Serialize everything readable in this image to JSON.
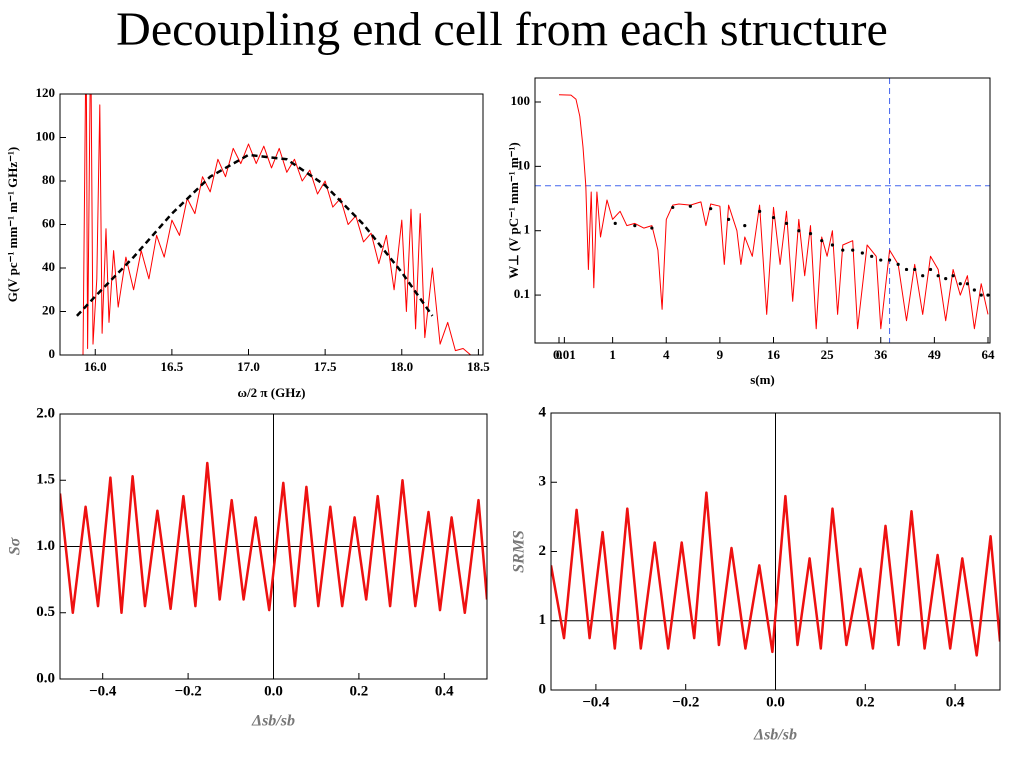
{
  "title": "Decoupling end cell from each structure",
  "chart_data": [
    {
      "type": "line",
      "xlabel": "ω/2 π (GHz)",
      "ylabel": "G(V pc⁻¹ mm⁻¹ m⁻¹ GHz⁻¹)",
      "xlim": [
        15.77,
        18.53
      ],
      "ylim": [
        0,
        120
      ],
      "xticks": [
        {
          "value": 16,
          "label": "16.0"
        },
        16.5,
        {
          "value": 17,
          "label": "17.0"
        },
        17.5,
        {
          "value": 18,
          "label": "18.0"
        },
        18.5
      ],
      "yticks": [
        0,
        20,
        40,
        60,
        80,
        100,
        120
      ],
      "series": [
        {
          "color": "#ff0000",
          "line_style": "solid",
          "x": [
            15.85,
            15.92,
            15.94,
            15.95,
            15.97,
            15.985,
            16.01,
            16.03,
            16.045,
            16.07,
            16.09,
            16.12,
            16.15,
            16.2,
            16.25,
            16.3,
            16.35,
            16.4,
            16.45,
            16.5,
            16.55,
            16.6,
            16.65,
            16.7,
            16.75,
            16.8,
            16.85,
            16.9,
            16.95,
            17.0,
            17.05,
            17.1,
            17.15,
            17.2,
            17.25,
            17.3,
            17.35,
            17.4,
            17.45,
            17.5,
            17.55,
            17.6,
            17.65,
            17.7,
            17.75,
            17.8,
            17.85,
            17.9,
            17.95,
            18.0,
            18.03,
            18.06,
            18.09,
            18.12,
            18.15,
            18.2,
            18.25,
            18.3,
            18.35,
            18.4,
            18.45,
            18.5
          ],
          "values": [
            0,
            0,
            150,
            3,
            150,
            5,
            35,
            115,
            10,
            58,
            15,
            48,
            22,
            45,
            30,
            48,
            35,
            55,
            45,
            62,
            55,
            72,
            65,
            82,
            75,
            90,
            82,
            95,
            88,
            97,
            88,
            96,
            86,
            95,
            84,
            90,
            80,
            85,
            74,
            80,
            68,
            72,
            60,
            64,
            52,
            56,
            42,
            55,
            30,
            62,
            20,
            67,
            12,
            65,
            8,
            40,
            5,
            15,
            2,
            3,
            0,
            0
          ]
        },
        {
          "color": "#000000",
          "line_style": "dashed",
          "x": [
            15.88,
            16.0,
            16.25,
            16.5,
            16.75,
            17.0,
            17.25,
            17.5,
            17.75,
            18.0,
            18.2
          ],
          "values": [
            18,
            27,
            45,
            65,
            82,
            92,
            90,
            78,
            60,
            38,
            18
          ]
        }
      ]
    },
    {
      "type": "line",
      "xlabel": "s(m)",
      "ylabel": "W⊥ (V pC⁻¹ mm⁻¹ m⁻¹)",
      "xscale": "sqrt",
      "yscale": "log",
      "xlim": [
        0,
        64
      ],
      "ylim": [
        0.018,
        236
      ],
      "xticks": [
        0,
        0.01,
        1,
        4,
        9,
        16,
        25,
        36,
        49,
        64
      ],
      "yticks": [
        0.1,
        1,
        10,
        100
      ],
      "hline": 5,
      "vline": 38,
      "ref_color": "#4466ee",
      "ref_style": "dashed",
      "series": [
        {
          "color": "#ff0000",
          "line_style": "solid",
          "x": [
            0,
            0.05,
            0.1,
            0.15,
            0.2,
            0.25,
            0.3,
            0.36,
            0.42,
            0.5,
            0.6,
            0.8,
            1,
            1.3,
            1.6,
            2,
            2.5,
            3,
            3.4,
            3.7,
            4,
            4.5,
            5,
            6,
            7,
            7.5,
            8,
            9,
            9.5,
            10,
            11,
            11.5,
            12,
            13,
            14,
            15,
            16,
            17,
            18,
            19,
            20,
            21,
            22,
            23,
            24,
            25,
            26,
            27,
            28,
            30,
            31,
            33,
            35,
            36,
            38,
            40,
            42,
            44,
            46,
            48,
            50,
            52,
            54,
            56,
            58,
            60,
            62,
            64
          ],
          "values": [
            130,
            128,
            110,
            60,
            20,
            5,
            0.25,
            4,
            0.13,
            4,
            0.8,
            3,
            1.5,
            2,
            1.2,
            1.3,
            1.1,
            1.2,
            0.5,
            0.06,
            1.5,
            2.5,
            2.6,
            2.5,
            2.8,
            1.2,
            2.6,
            2.4,
            0.3,
            2.5,
            1,
            0.3,
            0.8,
            0.4,
            2.5,
            0.05,
            2.3,
            0.3,
            2,
            0.08,
            1.5,
            0.2,
            1.2,
            0.03,
            0.8,
            0.4,
            1,
            0.05,
            0.6,
            0.7,
            0.03,
            0.6,
            0.4,
            0.03,
            0.5,
            0.3,
            0.04,
            0.3,
            0.05,
            0.4,
            0.25,
            0.04,
            0.25,
            0.1,
            0.2,
            0.03,
            0.15,
            0.05
          ]
        },
        {
          "color": "#000000",
          "line_style": "none",
          "marker": "dot",
          "x": [
            1.1,
            2,
            3,
            4.5,
            6,
            8,
            10,
            12,
            14,
            16,
            18,
            20,
            22,
            24,
            26,
            28,
            30,
            32,
            34,
            36,
            38,
            40,
            42,
            44,
            46,
            48,
            50,
            52,
            54,
            56,
            58,
            60,
            62,
            64
          ],
          "values": [
            1.3,
            1.2,
            1.1,
            2.3,
            2.4,
            2.2,
            1.5,
            1.2,
            2,
            1.6,
            1.3,
            1.0,
            0.9,
            0.7,
            0.6,
            0.5,
            0.5,
            0.45,
            0.4,
            0.35,
            0.35,
            0.3,
            0.25,
            0.25,
            0.2,
            0.25,
            0.2,
            0.18,
            0.2,
            0.15,
            0.15,
            0.12,
            0.1,
            0.1
          ]
        }
      ]
    },
    {
      "type": "line",
      "xlabel": "Δsb/sb",
      "ylabel": "Sσ",
      "xlim": [
        -0.5,
        0.5
      ],
      "ylim": [
        0,
        2
      ],
      "xticks": [
        {
          "value": -0.4,
          "label": "−0.4"
        },
        {
          "value": -0.2,
          "label": "−0.2"
        },
        {
          "value": 0,
          "label": "0.0"
        },
        0.2,
        0.4
      ],
      "yticks": [
        {
          "value": 0,
          "label": "0.0"
        },
        0.5,
        {
          "value": 1,
          "label": "1.0"
        },
        1.5,
        {
          "value": 2,
          "label": "2.0"
        }
      ],
      "hline": 1,
      "vline": 0,
      "ref_color": "#000000",
      "ref_style": "solid",
      "series": [
        {
          "color": "#ee1111",
          "line_style": "solid",
          "x": [
            -0.5,
            -0.47,
            -0.44,
            -0.411,
            -0.382,
            -0.356,
            -0.33,
            -0.301,
            -0.272,
            -0.241,
            -0.211,
            -0.183,
            -0.155,
            -0.126,
            -0.098,
            -0.07,
            -0.042,
            -0.01,
            0.023,
            0.05,
            0.077,
            0.105,
            0.133,
            0.161,
            0.19,
            0.217,
            0.244,
            0.273,
            0.302,
            0.332,
            0.363,
            0.39,
            0.417,
            0.448,
            0.48,
            0.5
          ],
          "values": [
            1.4,
            0.5,
            1.3,
            0.55,
            1.52,
            0.5,
            1.53,
            0.55,
            1.27,
            0.53,
            1.38,
            0.55,
            1.63,
            0.6,
            1.35,
            0.6,
            1.22,
            0.52,
            1.48,
            0.55,
            1.45,
            0.55,
            1.3,
            0.55,
            1.22,
            0.6,
            1.38,
            0.55,
            1.5,
            0.55,
            1.26,
            0.52,
            1.22,
            0.5,
            1.35,
            0.6
          ]
        }
      ]
    },
    {
      "type": "line",
      "xlabel": "Δsb/sb",
      "ylabel": "SRMS",
      "xlim": [
        -0.5,
        0.5
      ],
      "ylim": [
        0,
        4
      ],
      "xticks": [
        {
          "value": -0.4,
          "label": "−0.4"
        },
        {
          "value": -0.2,
          "label": "−0.2"
        },
        {
          "value": 0,
          "label": "0.0"
        },
        0.2,
        0.4
      ],
      "yticks": [
        0,
        1,
        2,
        3,
        4
      ],
      "hline": 1,
      "vline": 0,
      "ref_color": "#000000",
      "ref_style": "solid",
      "series": [
        {
          "color": "#ee1111",
          "line_style": "solid",
          "x": [
            -0.5,
            -0.471,
            -0.443,
            -0.414,
            -0.385,
            -0.358,
            -0.33,
            -0.3,
            -0.269,
            -0.239,
            -0.209,
            -0.181,
            -0.154,
            -0.126,
            -0.098,
            -0.067,
            -0.036,
            -0.007,
            0.022,
            0.049,
            0.076,
            0.101,
            0.127,
            0.158,
            0.189,
            0.217,
            0.245,
            0.274,
            0.303,
            0.332,
            0.361,
            0.389,
            0.416,
            0.448,
            0.479,
            0.5
          ],
          "values": [
            1.8,
            0.75,
            2.6,
            0.75,
            2.28,
            0.6,
            2.62,
            0.6,
            2.13,
            0.6,
            2.13,
            0.75,
            2.85,
            0.65,
            2.05,
            0.6,
            1.8,
            0.55,
            2.8,
            0.65,
            1.9,
            0.6,
            2.62,
            0.65,
            1.75,
            0.6,
            2.37,
            0.65,
            2.58,
            0.6,
            1.95,
            0.6,
            1.9,
            0.5,
            2.22,
            0.7
          ]
        }
      ]
    }
  ]
}
